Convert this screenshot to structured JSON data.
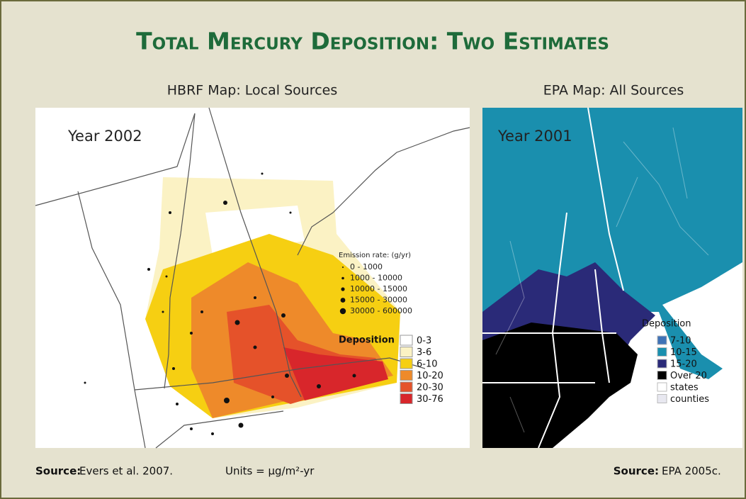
{
  "header": {
    "title": "Total Mercury Deposition: Two Estimates"
  },
  "left": {
    "subtitle": "HBRF Map: Local Sources",
    "year": "Year 2002",
    "emission_legend": {
      "title": "Emission rate: (g/yr)",
      "items": [
        "0 - 1000",
        "1000 - 10000",
        "10000 - 15000",
        "15000 - 30000",
        "30000 - 600000"
      ]
    },
    "deposition_legend": {
      "title": "Deposition",
      "items": [
        {
          "label": "0-3",
          "color": "#ffffff"
        },
        {
          "label": "3-6",
          "color": "#fbf2c4"
        },
        {
          "label": "6-10",
          "color": "#f6cf12"
        },
        {
          "label": "10-20",
          "color": "#ee8a2a"
        },
        {
          "label": "20-30",
          "color": "#e5522a"
        },
        {
          "label": "30-76",
          "color": "#d8262b"
        }
      ]
    }
  },
  "right": {
    "subtitle": "EPA Map:  All Sources",
    "year": "Year 2001",
    "legend": {
      "title": "Deposition",
      "items": [
        {
          "label": "7-10",
          "color": "#3f72b6"
        },
        {
          "label": "10-15",
          "color": "#1a8fae"
        },
        {
          "label": "15-20",
          "color": "#2a2a78"
        },
        {
          "label": "Over 20",
          "color": "#000000"
        },
        {
          "label": "states",
          "color": "#ffffff"
        },
        {
          "label": "counties",
          "color": "#e8e8f0"
        }
      ]
    }
  },
  "footer": {
    "left_source_label": "Source:",
    "left_source": "Evers et al. 2007.",
    "units": "Units = µg/m²-yr",
    "right_source_label": "Source:",
    "right_source": "EPA 2005c."
  }
}
